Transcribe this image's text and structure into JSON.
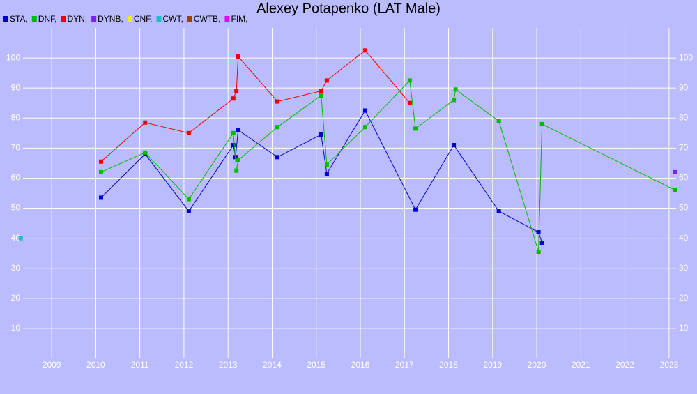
{
  "chart_data": {
    "type": "line",
    "title": "Alexey Potapenko (LAT Male)",
    "xlim": [
      2008.35,
      2023.16
    ],
    "xticks": [
      2009,
      2010,
      2011,
      2012,
      2013,
      2014,
      2015,
      2016,
      2017,
      2018,
      2019,
      2020,
      2021,
      2022,
      2023
    ],
    "ylim": [
      0,
      110
    ],
    "yticks": [
      10,
      20,
      30,
      40,
      50,
      60,
      70,
      80,
      90,
      100
    ],
    "grid": true,
    "series": [
      {
        "name": "STA,",
        "color": "#0000cc",
        "x": [
          2010.12,
          2011.12,
          2012.11,
          2013.12,
          2013.17,
          2013.23,
          2014.12,
          2015.11,
          2015.24,
          2016.11,
          2017.25,
          2018.12,
          2019.14,
          2020.04,
          2020.12
        ],
        "values": [
          53.5,
          68,
          49,
          71,
          67,
          76,
          67,
          74.5,
          61.5,
          82.5,
          49.5,
          71,
          49,
          42,
          38.5
        ]
      },
      {
        "name": "DNF,",
        "color": "#00bb00",
        "x": [
          2010.12,
          2011.12,
          2012.11,
          2013.12,
          2013.19,
          2013.23,
          2014.12,
          2015.11,
          2015.24,
          2016.11,
          2017.12,
          2017.25,
          2018.12,
          2018.16,
          2019.14,
          2020.04,
          2020.12,
          2023.14
        ],
        "values": [
          62,
          68.5,
          53,
          75,
          62.5,
          66,
          77,
          87.5,
          64.5,
          77,
          92.5,
          76.5,
          86,
          89.5,
          79,
          35.5,
          78,
          56
        ]
      },
      {
        "name": "DYN,",
        "color": "#ee0000",
        "x": [
          2010.12,
          2011.12,
          2012.11,
          2013.12,
          2013.19,
          2013.23,
          2014.12,
          2015.11,
          2015.24,
          2016.11,
          2017.12
        ],
        "values": [
          65.5,
          78.5,
          75,
          86.5,
          89,
          100.5,
          85.5,
          89,
          92.5,
          102.5,
          85
        ]
      },
      {
        "name": "DYNB,",
        "color": "#7722ee",
        "x": [
          2023.14
        ],
        "values": [
          62
        ]
      },
      {
        "name": "CNF,",
        "color": "#eeee00",
        "x": [],
        "values": []
      },
      {
        "name": "CWT,",
        "color": "#22bbcc",
        "x": [
          2008.3
        ],
        "values": [
          40
        ]
      },
      {
        "name": "CWTB,",
        "color": "#994400",
        "x": [],
        "values": []
      },
      {
        "name": "FIM,",
        "color": "#ee00ee",
        "x": [],
        "values": []
      }
    ]
  }
}
